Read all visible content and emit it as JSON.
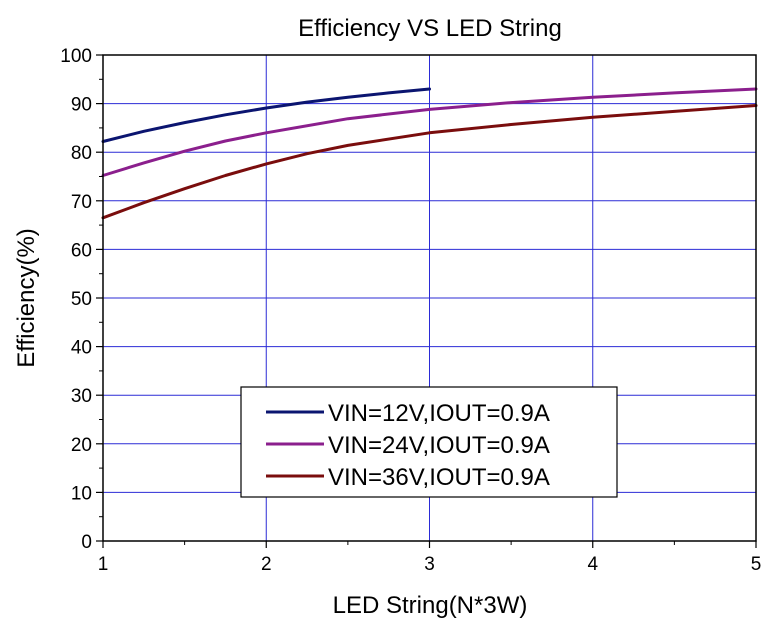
{
  "chart_data": {
    "type": "line",
    "title": "Efficiency VS LED String",
    "xlabel": "LED String(N*3W)",
    "ylabel": "Efficiency(%)",
    "xlim": [
      1,
      5
    ],
    "ylim": [
      0,
      100
    ],
    "xticks": [
      1,
      2,
      3,
      4,
      5
    ],
    "yticks": [
      0,
      10,
      20,
      30,
      40,
      50,
      60,
      70,
      80,
      90,
      100
    ],
    "grid": true,
    "legend_position": "bottom-center",
    "series": [
      {
        "name": "VIN=12V,IOUT=0.9A",
        "color": "#0b1570",
        "x": [
          1,
          1.25,
          1.5,
          1.75,
          2,
          2.25,
          2.5,
          2.75,
          3
        ],
        "y": [
          82.2,
          84.3,
          86.1,
          87.7,
          89.1,
          90.3,
          91.3,
          92.2,
          93.0
        ]
      },
      {
        "name": "VIN=24V,IOUT=0.9A",
        "color": "#8b1f8d",
        "x": [
          1,
          1.25,
          1.5,
          1.75,
          2,
          2.5,
          3,
          3.5,
          4,
          4.5,
          5
        ],
        "y": [
          75.2,
          77.8,
          80.2,
          82.3,
          84.0,
          86.9,
          88.8,
          90.2,
          91.3,
          92.2,
          93.0
        ]
      },
      {
        "name": "VIN=36V,IOUT=0.9A",
        "color": "#7a0d0d",
        "x": [
          1,
          1.25,
          1.5,
          1.75,
          2,
          2.25,
          2.5,
          3,
          3.5,
          4,
          4.5,
          5
        ],
        "y": [
          66.5,
          69.6,
          72.5,
          75.2,
          77.6,
          79.7,
          81.4,
          84.0,
          85.7,
          87.2,
          88.4,
          89.6
        ]
      }
    ]
  }
}
